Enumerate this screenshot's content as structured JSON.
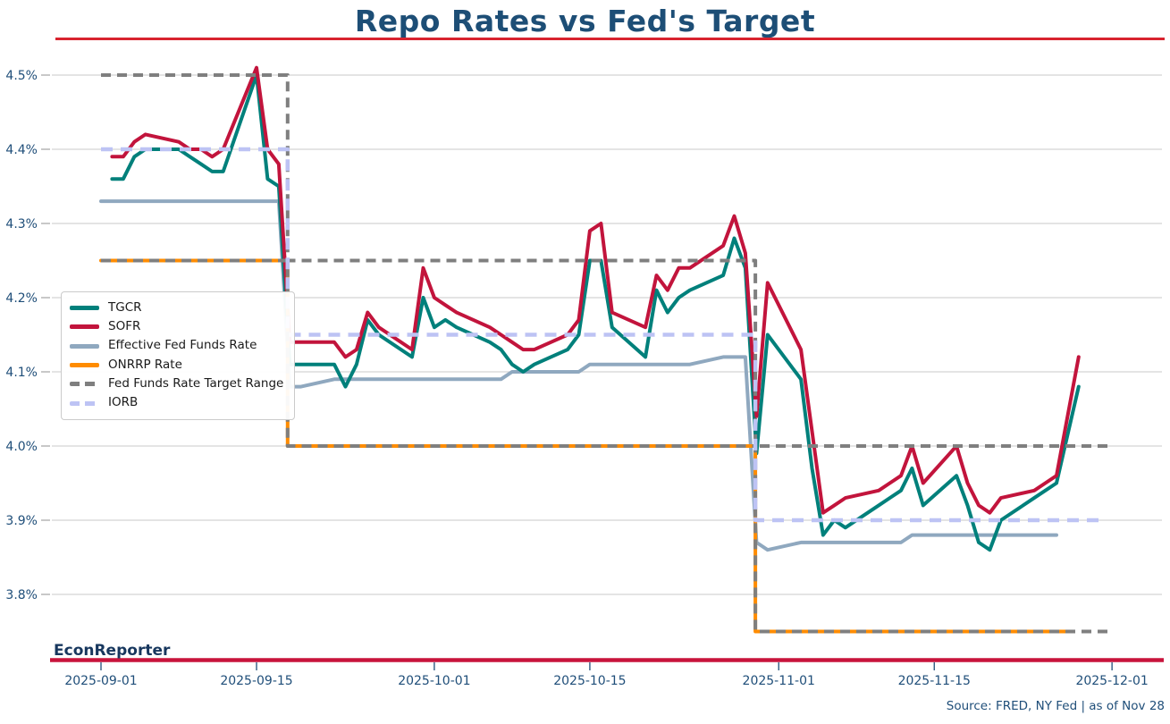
{
  "header": {
    "title": "Repo Rates vs Fed's Target"
  },
  "footer": {
    "brand": "EconReporter",
    "source": "Source: FRED, NY Fed | as of Nov 28"
  },
  "colors": {
    "title": "#1D4E76",
    "tick_label": "#1F4E79",
    "grid": "#D4D4D4",
    "y_tick_mark": "#ABABAB",
    "x_tick_mark": "#1F4E79",
    "axis_line": "#C8143C",
    "title_rule": "#D8232F",
    "brand": "#17375E",
    "legend_text": "#1A1A1A",
    "legend_border": "#CBCBCB"
  },
  "chart_data": {
    "type": "line",
    "title": "Repo Rates vs Fed's Target",
    "xlabel": "",
    "ylabel": "",
    "x_unit": "days since 2025-09-01, business-day series",
    "ylim": [
      3.71,
      4.53
    ],
    "grid": "horizontal only",
    "legend_position": "center-left",
    "x_ticks": [
      {
        "day": 0,
        "label": "2025-09-01"
      },
      {
        "day": 14,
        "label": "2025-09-15"
      },
      {
        "day": 30,
        "label": "2025-10-01"
      },
      {
        "day": 44,
        "label": "2025-10-15"
      },
      {
        "day": 61,
        "label": "2025-11-01"
      },
      {
        "day": 75,
        "label": "2025-11-15"
      },
      {
        "day": 91,
        "label": "2025-12-01"
      }
    ],
    "y_ticks": [
      {
        "value": 4.5,
        "label": "4.5%"
      },
      {
        "value": 4.4,
        "label": "4.4%"
      },
      {
        "value": 4.3,
        "label": "4.3%"
      },
      {
        "value": 4.2,
        "label": "4.2%"
      },
      {
        "value": 4.1,
        "label": "4.1%"
      },
      {
        "value": 4.0,
        "label": "4.0%"
      },
      {
        "value": 3.9,
        "label": "3.9%"
      },
      {
        "value": 3.8,
        "label": "3.8%"
      }
    ],
    "series": [
      {
        "id": "effr",
        "name": "Effective Fed Funds Rate",
        "color": "#8FA8BF",
        "width": 4,
        "dash": null,
        "points": [
          [
            0,
            4.33
          ],
          [
            16,
            4.33
          ],
          [
            17,
            4.08
          ],
          [
            18,
            4.08
          ],
          [
            21,
            4.09
          ],
          [
            36,
            4.09
          ],
          [
            37,
            4.1
          ],
          [
            43,
            4.1
          ],
          [
            44,
            4.11
          ],
          [
            53,
            4.11
          ],
          [
            56,
            4.12
          ],
          [
            58,
            4.12
          ],
          [
            59,
            3.87
          ],
          [
            60,
            3.86
          ],
          [
            63,
            3.87
          ],
          [
            72,
            3.87
          ],
          [
            73,
            3.88
          ],
          [
            86,
            3.88
          ]
        ]
      },
      {
        "id": "tgcr",
        "name": "TGCR",
        "color": "#00807B",
        "width": 4,
        "dash": null,
        "points": [
          [
            1,
            4.36
          ],
          [
            2,
            4.36
          ],
          [
            3,
            4.39
          ],
          [
            4,
            4.4
          ],
          [
            7,
            4.4
          ],
          [
            8,
            4.39
          ],
          [
            9,
            4.38
          ],
          [
            10,
            4.37
          ],
          [
            11,
            4.37
          ],
          [
            14,
            4.5
          ],
          [
            15,
            4.36
          ],
          [
            16,
            4.35
          ],
          [
            17,
            4.11
          ],
          [
            18,
            4.11
          ],
          [
            21,
            4.11
          ],
          [
            22,
            4.08
          ],
          [
            23,
            4.11
          ],
          [
            24,
            4.17
          ],
          [
            25,
            4.15
          ],
          [
            28,
            4.12
          ],
          [
            29,
            4.2
          ],
          [
            30,
            4.16
          ],
          [
            31,
            4.17
          ],
          [
            32,
            4.16
          ],
          [
            35,
            4.14
          ],
          [
            36,
            4.13
          ],
          [
            37,
            4.11
          ],
          [
            38,
            4.1
          ],
          [
            39,
            4.11
          ],
          [
            42,
            4.13
          ],
          [
            43,
            4.15
          ],
          [
            44,
            4.25
          ],
          [
            45,
            4.25
          ],
          [
            46,
            4.16
          ],
          [
            49,
            4.12
          ],
          [
            50,
            4.21
          ],
          [
            51,
            4.18
          ],
          [
            52,
            4.2
          ],
          [
            53,
            4.21
          ],
          [
            56,
            4.23
          ],
          [
            57,
            4.28
          ],
          [
            58,
            4.24
          ],
          [
            59,
            3.99
          ],
          [
            60,
            4.15
          ],
          [
            63,
            4.09
          ],
          [
            64,
            3.97
          ],
          [
            65,
            3.88
          ],
          [
            66,
            3.9
          ],
          [
            67,
            3.89
          ],
          [
            70,
            3.92
          ],
          [
            71,
            3.93
          ],
          [
            72,
            3.94
          ],
          [
            73,
            3.97
          ],
          [
            74,
            3.92
          ],
          [
            77,
            3.96
          ],
          [
            78,
            3.92
          ],
          [
            79,
            3.87
          ],
          [
            80,
            3.86
          ],
          [
            81,
            3.9
          ],
          [
            84,
            3.93
          ],
          [
            85,
            3.94
          ],
          [
            86,
            3.95
          ],
          [
            88,
            4.08
          ]
        ]
      },
      {
        "id": "sofr",
        "name": "SOFR",
        "color": "#C2143C",
        "width": 4,
        "dash": null,
        "points": [
          [
            1,
            4.39
          ],
          [
            2,
            4.39
          ],
          [
            3,
            4.41
          ],
          [
            4,
            4.42
          ],
          [
            7,
            4.41
          ],
          [
            8,
            4.4
          ],
          [
            9,
            4.4
          ],
          [
            10,
            4.39
          ],
          [
            11,
            4.4
          ],
          [
            14,
            4.51
          ],
          [
            15,
            4.4
          ],
          [
            16,
            4.38
          ],
          [
            17,
            4.14
          ],
          [
            18,
            4.14
          ],
          [
            21,
            4.14
          ],
          [
            22,
            4.12
          ],
          [
            23,
            4.13
          ],
          [
            24,
            4.18
          ],
          [
            25,
            4.16
          ],
          [
            28,
            4.13
          ],
          [
            29,
            4.24
          ],
          [
            30,
            4.2
          ],
          [
            31,
            4.19
          ],
          [
            32,
            4.18
          ],
          [
            35,
            4.16
          ],
          [
            36,
            4.15
          ],
          [
            37,
            4.14
          ],
          [
            38,
            4.13
          ],
          [
            39,
            4.13
          ],
          [
            42,
            4.15
          ],
          [
            43,
            4.17
          ],
          [
            44,
            4.29
          ],
          [
            45,
            4.3
          ],
          [
            46,
            4.18
          ],
          [
            49,
            4.16
          ],
          [
            50,
            4.23
          ],
          [
            51,
            4.21
          ],
          [
            52,
            4.24
          ],
          [
            53,
            4.24
          ],
          [
            56,
            4.27
          ],
          [
            57,
            4.31
          ],
          [
            58,
            4.26
          ],
          [
            59,
            4.04
          ],
          [
            60,
            4.22
          ],
          [
            63,
            4.13
          ],
          [
            64,
            4.02
          ],
          [
            65,
            3.91
          ],
          [
            66,
            3.92
          ],
          [
            67,
            3.93
          ],
          [
            70,
            3.94
          ],
          [
            71,
            3.95
          ],
          [
            72,
            3.96
          ],
          [
            73,
            4.0
          ],
          [
            74,
            3.95
          ],
          [
            77,
            4.0
          ],
          [
            78,
            3.95
          ],
          [
            79,
            3.92
          ],
          [
            80,
            3.91
          ],
          [
            81,
            3.93
          ],
          [
            84,
            3.94
          ],
          [
            85,
            3.95
          ],
          [
            86,
            3.96
          ],
          [
            88,
            4.12
          ]
        ]
      },
      {
        "id": "onrrp",
        "name": "ONRRP Rate",
        "color": "#FF8C00",
        "width": 4,
        "dash": null,
        "points": [
          [
            0,
            4.25
          ],
          [
            16.8,
            4.25
          ],
          [
            16.8,
            4.0
          ],
          [
            58.9,
            4.0
          ],
          [
            58.9,
            3.75
          ],
          [
            87,
            3.75
          ]
        ]
      },
      {
        "id": "target-lower",
        "name": "Fed Funds Rate Target Range (lower)",
        "color": "#7F7F7F",
        "width": 4,
        "dash": [
          11,
          7
        ],
        "points": [
          [
            0,
            4.25
          ],
          [
            16.8,
            4.25
          ],
          [
            16.8,
            4.0
          ],
          [
            58.9,
            4.0
          ],
          [
            58.9,
            3.75
          ],
          [
            90.7,
            3.75
          ]
        ]
      },
      {
        "id": "target-upper",
        "name": "Fed Funds Rate Target Range (upper)",
        "color": "#7F7F7F",
        "width": 4,
        "dash": [
          11,
          7
        ],
        "points": [
          [
            0,
            4.5
          ],
          [
            16.8,
            4.5
          ],
          [
            16.8,
            4.25
          ],
          [
            58.9,
            4.25
          ],
          [
            58.9,
            4.0
          ],
          [
            90.7,
            4.0
          ]
        ]
      },
      {
        "id": "iorb",
        "name": "IORB",
        "color": "#BDC3F4",
        "width": 4.5,
        "dash": [
          13,
          9
        ],
        "points": [
          [
            0,
            4.4
          ],
          [
            16.8,
            4.4
          ],
          [
            16.8,
            4.15
          ],
          [
            58.9,
            4.15
          ],
          [
            58.9,
            3.9
          ],
          [
            90.5,
            3.9
          ]
        ]
      }
    ],
    "legend": {
      "items": [
        {
          "label": "TGCR",
          "color": "#00807B",
          "dashed": false
        },
        {
          "label": "SOFR",
          "color": "#C2143C",
          "dashed": false
        },
        {
          "label": "Effective Fed Funds Rate",
          "color": "#8FA8BF",
          "dashed": false
        },
        {
          "label": "ONRRP Rate",
          "color": "#FF8C00",
          "dashed": false
        },
        {
          "label": "Fed Funds Rate Target Range",
          "color": "#7F7F7F",
          "dashed": true
        },
        {
          "label": "IORB",
          "color": "#BDC3F4",
          "dashed": true
        }
      ]
    },
    "annotations": {
      "policy_steps": "Target range 4.25-4.50 until Sep 17, 4.00-4.25 from Sep 18, 3.75-4.00 from Oct 30; IORB 4.40 / 4.15 / 3.90; ONRRP 4.25 / 4.00 / 3.75"
    }
  }
}
